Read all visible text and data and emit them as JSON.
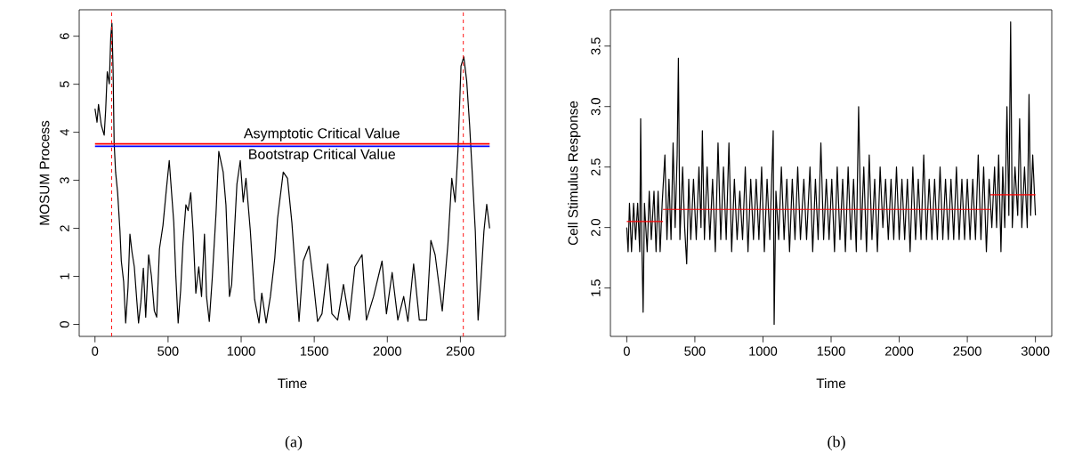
{
  "chart_data": [
    {
      "type": "line",
      "xlabel": "Time",
      "ylabel": "MOSUM Process",
      "xlim": [
        -108,
        2808
      ],
      "ylim": [
        -0.25,
        6.55
      ],
      "xticks": [
        0,
        500,
        1000,
        1500,
        2000,
        2500
      ],
      "yticks": [
        0,
        1,
        2,
        3,
        4,
        5,
        6
      ],
      "series": [
        {
          "color": "#000000",
          "x": [
            0,
            14,
            24,
            43,
            63,
            73,
            84,
            98,
            108,
            116,
            124,
            131,
            141,
            155,
            171,
            180,
            196,
            210,
            226,
            239,
            253,
            269,
            284,
            298,
            314,
            331,
            347,
            367,
            386,
            406,
            422,
            441,
            465,
            488,
            508,
            524,
            539,
            553,
            569,
            586,
            602,
            622,
            637,
            655,
            671,
            690,
            710,
            729,
            749,
            763,
            782,
            802,
            828,
            847,
            877,
            896,
            920,
            935,
            971,
            994,
            1014,
            1033,
            1063,
            1092,
            1122,
            1141,
            1171,
            1200,
            1230,
            1249,
            1288,
            1317,
            1347,
            1376,
            1396,
            1425,
            1464,
            1494,
            1523,
            1553,
            1592,
            1621,
            1660,
            1700,
            1739,
            1778,
            1827,
            1857,
            1906,
            1964,
            1994,
            2033,
            2072,
            2112,
            2141,
            2180,
            2219,
            2268,
            2298,
            2327,
            2376,
            2415,
            2441,
            2464,
            2484,
            2504,
            2523,
            2543,
            2563,
            2582,
            2602,
            2621,
            2641,
            2661,
            2680,
            2700
          ],
          "values": [
            4.49,
            4.21,
            4.58,
            4.15,
            3.94,
            4.46,
            5.26,
            5.01,
            6.0,
            6.27,
            5.26,
            3.78,
            3.17,
            2.74,
            1.94,
            1.32,
            0.89,
            0.03,
            0.77,
            1.88,
            1.51,
            1.2,
            0.58,
            0.03,
            0.46,
            1.17,
            0.15,
            1.45,
            1.01,
            0.28,
            0.15,
            1.57,
            2.06,
            2.8,
            3.41,
            2.74,
            2.12,
            1.01,
            0.03,
            0.71,
            1.69,
            2.49,
            2.37,
            2.74,
            1.94,
            0.65,
            1.2,
            0.58,
            1.88,
            0.58,
            0.06,
            0.95,
            2.31,
            3.6,
            3.17,
            2.49,
            0.58,
            0.83,
            2.92,
            3.41,
            2.55,
            3.04,
            1.94,
            0.52,
            0.03,
            0.65,
            0.03,
            0.58,
            1.38,
            2.2,
            3.17,
            3.04,
            2.12,
            0.89,
            0.06,
            1.32,
            1.63,
            0.89,
            0.06,
            0.22,
            1.26,
            0.22,
            0.09,
            0.83,
            0.09,
            1.2,
            1.45,
            0.09,
            0.58,
            1.32,
            0.22,
            1.08,
            0.09,
            0.58,
            0.06,
            1.26,
            0.09,
            0.09,
            1.75,
            1.45,
            0.28,
            1.69,
            3.04,
            2.55,
            3.66,
            5.38,
            5.57,
            5.07,
            4.15,
            3.1,
            1.94,
            0.09,
            0.95,
            1.94,
            2.5,
            2.0
          ]
        }
      ],
      "ref_lines": [
        {
          "axis": "y",
          "value": 3.76,
          "label": "Asymptotic Critical Value",
          "color": "#ff0000",
          "line_style": "solid"
        },
        {
          "axis": "y",
          "value": 3.71,
          "label": "Bootstrap Critical Value",
          "color": "#0000ff",
          "line_style": "solid"
        },
        {
          "axis": "x",
          "value": 114,
          "color": "#ff0000",
          "line_style": "dashed"
        },
        {
          "axis": "x",
          "value": 2520,
          "color": "#ff0000",
          "line_style": "dashed"
        }
      ],
      "annotations": [
        "(a)"
      ]
    },
    {
      "type": "line",
      "xlabel": "Time",
      "ylabel": "Cell Stimulus Response",
      "xlim": [
        -120,
        3120
      ],
      "ylim": [
        1.1,
        3.8
      ],
      "xticks": [
        0,
        500,
        1000,
        1500,
        2000,
        2500,
        3000
      ],
      "yticks": [
        {
          "value": 1.5,
          "label": "1.5"
        },
        {
          "value": 2.0,
          "label": "2.0"
        },
        {
          "value": 2.5,
          "label": "2.5"
        },
        {
          "value": 3.0,
          "label": "3.0"
        },
        {
          "value": 3.5,
          "label": "3.5"
        }
      ],
      "series": [
        {
          "color": "#000000",
          "x": [
            0,
            10,
            20,
            35,
            50,
            65,
            80,
            95,
            102,
            110,
            120,
            130,
            150,
            165,
            180,
            200,
            215,
            230,
            245,
            260,
            280,
            295,
            310,
            325,
            340,
            355,
            370,
            379,
            390,
            410,
            425,
            440,
            455,
            470,
            490,
            510,
            530,
            545,
            555,
            570,
            590,
            610,
            630,
            650,
            670,
            690,
            710,
            730,
            750,
            770,
            790,
            810,
            830,
            850,
            870,
            890,
            910,
            930,
            950,
            970,
            990,
            1010,
            1030,
            1050,
            1075,
            1082,
            1095,
            1115,
            1135,
            1155,
            1175,
            1195,
            1215,
            1235,
            1255,
            1275,
            1300,
            1320,
            1345,
            1365,
            1385,
            1405,
            1425,
            1445,
            1465,
            1485,
            1505,
            1525,
            1545,
            1565,
            1585,
            1605,
            1625,
            1645,
            1665,
            1685,
            1702,
            1720,
            1740,
            1760,
            1780,
            1800,
            1820,
            1840,
            1860,
            1880,
            1900,
            1920,
            1940,
            1960,
            1980,
            2000,
            2020,
            2040,
            2060,
            2080,
            2100,
            2120,
            2140,
            2160,
            2180,
            2200,
            2220,
            2240,
            2260,
            2280,
            2300,
            2320,
            2340,
            2360,
            2380,
            2400,
            2420,
            2440,
            2460,
            2480,
            2500,
            2520,
            2540,
            2560,
            2580,
            2600,
            2620,
            2640,
            2660,
            2680,
            2700,
            2715,
            2730,
            2747,
            2760,
            2775,
            2791,
            2805,
            2818,
            2830,
            2850,
            2870,
            2884,
            2900,
            2920,
            2940,
            2953,
            2965,
            2980,
            3000
          ],
          "values": [
            2.0,
            1.8,
            2.2,
            1.8,
            2.2,
            1.9,
            2.2,
            1.8,
            2.9,
            1.9,
            1.3,
            2.2,
            1.8,
            2.3,
            1.9,
            2.3,
            1.8,
            2.3,
            1.8,
            2.2,
            2.6,
            1.9,
            2.4,
            1.9,
            2.7,
            2.0,
            2.6,
            3.4,
            1.9,
            2.5,
            2.0,
            1.7,
            2.4,
            1.9,
            2.4,
            1.9,
            2.5,
            2.0,
            2.8,
            1.9,
            2.5,
            1.9,
            2.4,
            1.8,
            2.7,
            1.9,
            2.5,
            1.9,
            2.7,
            1.8,
            2.4,
            1.9,
            2.3,
            1.9,
            2.5,
            1.8,
            2.4,
            1.9,
            2.4,
            1.9,
            2.5,
            1.8,
            2.4,
            1.9,
            2.8,
            1.2,
            2.3,
            1.9,
            2.5,
            1.9,
            2.4,
            1.8,
            2.4,
            1.9,
            2.5,
            1.9,
            2.4,
            1.9,
            2.5,
            1.8,
            2.4,
            1.9,
            2.7,
            1.9,
            2.4,
            1.9,
            2.4,
            1.8,
            2.5,
            1.9,
            2.4,
            1.8,
            2.5,
            1.9,
            2.4,
            1.8,
            3.0,
            1.9,
            2.5,
            1.8,
            2.6,
            1.9,
            2.4,
            1.8,
            2.5,
            2.0,
            2.4,
            1.9,
            2.4,
            1.9,
            2.5,
            1.9,
            2.4,
            1.9,
            2.4,
            1.8,
            2.5,
            1.9,
            2.4,
            1.9,
            2.6,
            1.9,
            2.4,
            1.9,
            2.4,
            1.9,
            2.5,
            1.9,
            2.4,
            1.9,
            2.4,
            1.9,
            2.5,
            1.9,
            2.4,
            1.9,
            2.4,
            1.9,
            2.4,
            1.9,
            2.6,
            1.9,
            2.5,
            1.8,
            2.4,
            2.0,
            2.5,
            2.0,
            2.6,
            1.8,
            2.5,
            2.0,
            3.0,
            2.1,
            3.7,
            2.0,
            2.5,
            2.1,
            2.9,
            2.0,
            2.5,
            2.0,
            3.1,
            2.1,
            2.6,
            2.1
          ]
        },
        {
          "color": "#ff0000",
          "x": [
            0,
            266
          ],
          "values": [
            2.05,
            2.05
          ]
        },
        {
          "color": "#ff0000",
          "x": [
            266,
            2670
          ],
          "values": [
            2.15,
            2.15
          ]
        },
        {
          "color": "#ff0000",
          "x": [
            2670,
            3000
          ],
          "values": [
            2.27,
            2.27
          ]
        }
      ],
      "annotations": [
        "(b)"
      ]
    }
  ]
}
